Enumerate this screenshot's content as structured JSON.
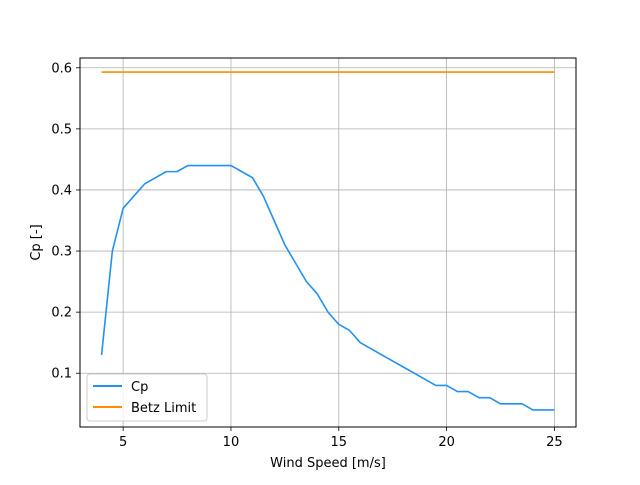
{
  "chart_data": {
    "type": "line",
    "title": "",
    "xlabel": "Wind Speed [m/s]",
    "ylabel": "Cp [-]",
    "xlim": [
      3,
      26
    ],
    "ylim": [
      0.012,
      0.616
    ],
    "xticks": [
      5,
      10,
      15,
      20,
      25
    ],
    "yticks": [
      0.1,
      0.2,
      0.3,
      0.4,
      0.5,
      0.6
    ],
    "xtick_labels": [
      "5",
      "10",
      "15",
      "20",
      "25"
    ],
    "ytick_labels": [
      "0.1",
      "0.2",
      "0.3",
      "0.4",
      "0.5",
      "0.6"
    ],
    "grid": true,
    "legend_position": "lower-left",
    "series": [
      {
        "name": "Cp",
        "color": "#2391f0",
        "x": [
          4,
          4.5,
          5,
          5.5,
          6,
          6.5,
          7,
          7.5,
          8,
          8.5,
          9,
          9.5,
          10,
          10.5,
          11,
          11.5,
          12,
          12.5,
          13,
          13.5,
          14,
          14.5,
          15,
          15.5,
          16,
          16.5,
          17,
          17.5,
          18,
          18.5,
          19,
          19.5,
          20,
          20.5,
          21,
          21.5,
          22,
          22.5,
          23,
          23.5,
          24,
          24.5,
          25
        ],
        "y": [
          0.13,
          0.3,
          0.37,
          0.39,
          0.41,
          0.42,
          0.43,
          0.43,
          0.44,
          0.44,
          0.44,
          0.44,
          0.44,
          0.43,
          0.42,
          0.39,
          0.35,
          0.31,
          0.28,
          0.25,
          0.23,
          0.2,
          0.18,
          0.17,
          0.15,
          0.14,
          0.13,
          0.12,
          0.11,
          0.1,
          0.09,
          0.08,
          0.08,
          0.07,
          0.07,
          0.06,
          0.06,
          0.05,
          0.05,
          0.05,
          0.04,
          0.04,
          0.04
        ]
      },
      {
        "name": "Betz Limit",
        "color": "#ff8c00",
        "x": [
          4,
          25
        ],
        "y": [
          0.593,
          0.593
        ]
      }
    ]
  }
}
